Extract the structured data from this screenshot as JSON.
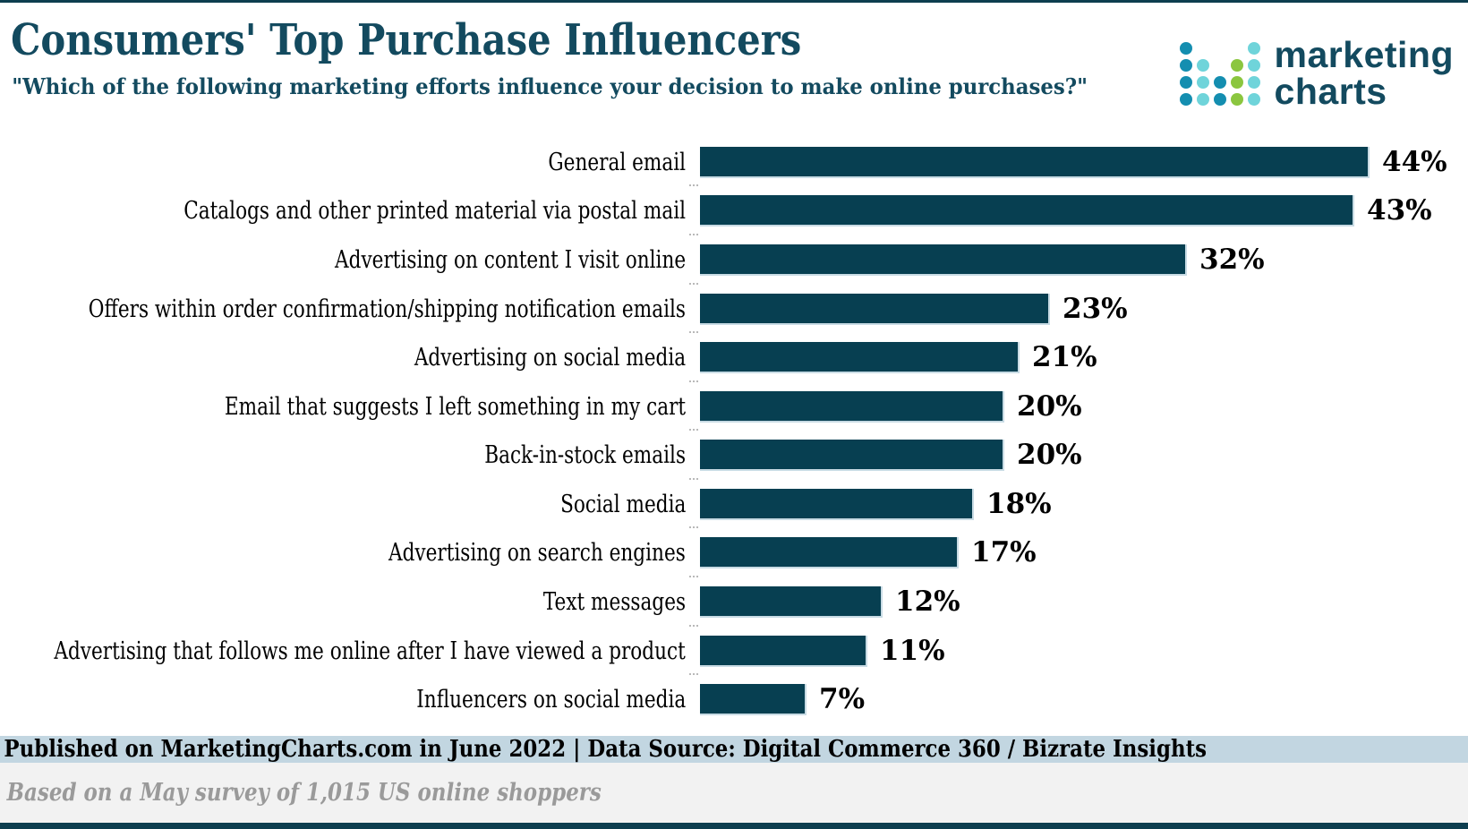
{
  "header": {
    "title": "Consumers' Top Purchase Influencers",
    "subtitle": "\"Which of the following marketing efforts influence your decision to make online purchases?\""
  },
  "logo": {
    "line1": "marketing",
    "line2": "charts",
    "colors": {
      "dark": "#148eb0",
      "light": "#6fd4da",
      "green": "#8bc63f"
    },
    "grid": [
      [
        "dark",
        "",
        "",
        "",
        "light"
      ],
      [
        "dark",
        "light",
        "",
        "green",
        "light"
      ],
      [
        "dark",
        "light",
        "dark",
        "green",
        "light"
      ],
      [
        "dark",
        "light",
        "dark",
        "green",
        "light"
      ]
    ]
  },
  "chart_data": {
    "type": "bar",
    "orientation": "horizontal",
    "title": "Consumers' Top Purchase Influencers",
    "categories": [
      "General email",
      "Catalogs and other printed material via postal mail",
      "Advertising on content I visit online",
      "Offers within order confirmation/shipping notification emails",
      "Advertising on social media",
      "Email that suggests I left something in my cart",
      "Back-in-stock emails",
      "Social media",
      "Advertising on search engines",
      "Text messages",
      "Advertising that follows me online after I have viewed a product",
      "Influencers on social media"
    ],
    "values": [
      44,
      43,
      32,
      23,
      21,
      20,
      20,
      18,
      17,
      12,
      11,
      7
    ],
    "value_suffix": "%",
    "xlabel": "",
    "ylabel": "",
    "xlim": [
      0,
      50
    ],
    "grid": false,
    "legend": false,
    "bar_color": "#073f51",
    "value_label_position": "end"
  },
  "footer": {
    "published": "Published on MarketingCharts.com in June 2022 | Data Source: Digital Commerce 360 / Bizrate Insights",
    "note": "Based on a May survey of 1,015 US online shoppers"
  }
}
